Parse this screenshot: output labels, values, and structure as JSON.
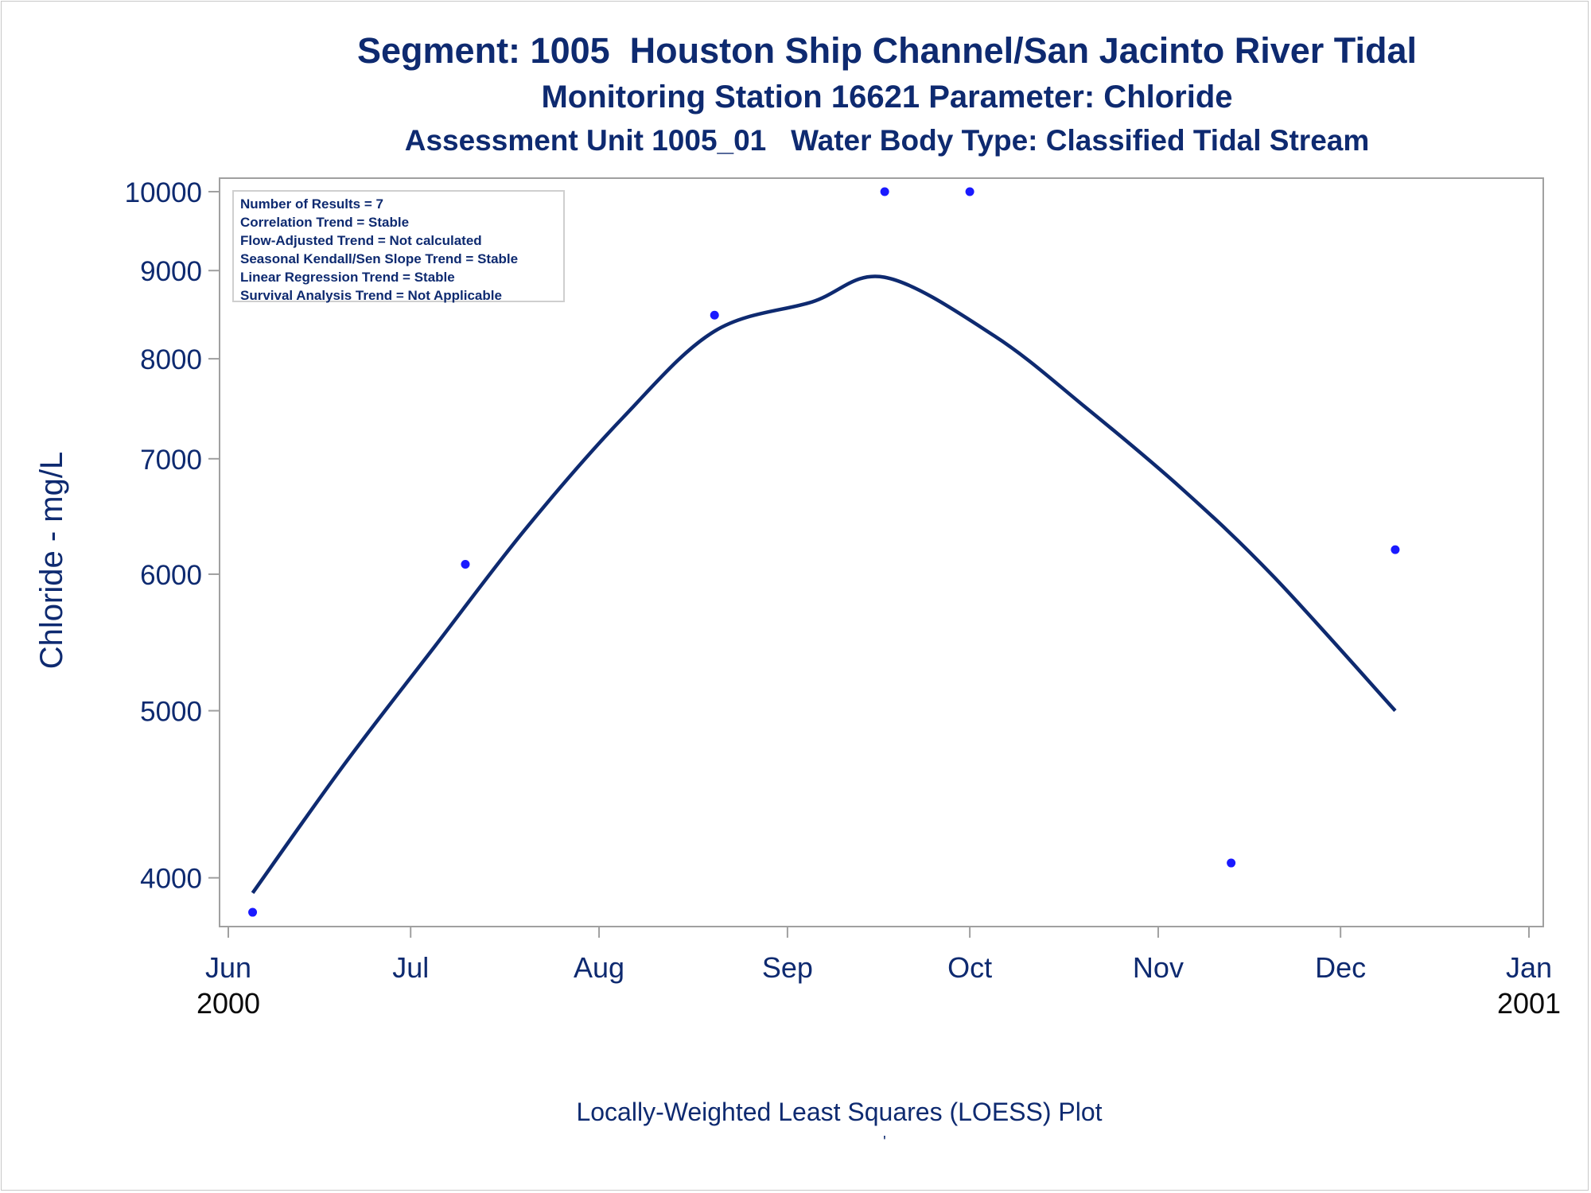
{
  "titles": {
    "line1": "Segment: 1005  Houston Ship Channel/San Jacinto River Tidal",
    "line2": "Monitoring Station 16621 Parameter: Chloride",
    "line3": "Assessment Unit 1005_01   Water Body Type: Classified Tidal Stream"
  },
  "stats": [
    "Number of Results = 7",
    "Correlation Trend = Stable",
    "Flow-Adjusted Trend = Not calculated",
    "Seasonal Kendall/Sen Slope Trend = Stable",
    "Linear Regression Trend = Stable",
    "Survival Analysis Trend = Not Applicable"
  ],
  "footnote": "Locally-Weighted Least Squares (LOESS) Plot",
  "footmark": "'",
  "colors": {
    "text": "#0e2a70",
    "points": "#1a1aff",
    "line": "#0e2a70",
    "axis": "#a0a0a0"
  },
  "chart_data": {
    "type": "scatter",
    "ylabel": "Chloride - mg/L",
    "y_scale": "log",
    "ylim": [
      3800,
      10000
    ],
    "xlim": [
      "2000-06-01",
      "2001-01-01"
    ],
    "y_ticks": [
      4000,
      5000,
      6000,
      7000,
      8000,
      9000,
      10000
    ],
    "x_ticks": [
      {
        "date": "2000-06-01",
        "label": [
          "Jun",
          "2000"
        ]
      },
      {
        "date": "2000-07-01",
        "label": [
          "Jul"
        ]
      },
      {
        "date": "2000-08-01",
        "label": [
          "Aug"
        ]
      },
      {
        "date": "2000-09-01",
        "label": [
          "Sep"
        ]
      },
      {
        "date": "2000-10-01",
        "label": [
          "Oct"
        ]
      },
      {
        "date": "2000-11-01",
        "label": [
          "Nov"
        ]
      },
      {
        "date": "2000-12-01",
        "label": [
          "Dec"
        ]
      },
      {
        "date": "2001-01-01",
        "label": [
          "Jan",
          "2001"
        ]
      }
    ],
    "points": [
      {
        "x": "2000-06-05",
        "y": 3820
      },
      {
        "x": "2000-07-10",
        "y": 6080
      },
      {
        "x": "2000-08-20",
        "y": 8480
      },
      {
        "x": "2000-09-17",
        "y": 10000
      },
      {
        "x": "2000-10-01",
        "y": 10000
      },
      {
        "x": "2000-11-13",
        "y": 4080
      },
      {
        "x": "2000-12-10",
        "y": 6200
      }
    ],
    "loess_line": [
      {
        "x": "2000-06-05",
        "y": 3920
      },
      {
        "x": "2000-06-20",
        "y": 4650
      },
      {
        "x": "2000-07-05",
        "y": 5450
      },
      {
        "x": "2000-07-20",
        "y": 6380
      },
      {
        "x": "2000-08-05",
        "y": 7400
      },
      {
        "x": "2000-08-20",
        "y": 8300
      },
      {
        "x": "2000-09-05",
        "y": 8630
      },
      {
        "x": "2000-09-17",
        "y": 8920
      },
      {
        "x": "2000-10-05",
        "y": 8250
      },
      {
        "x": "2000-10-20",
        "y": 7500
      },
      {
        "x": "2000-11-05",
        "y": 6720
      },
      {
        "x": "2000-11-20",
        "y": 5980
      },
      {
        "x": "2000-12-10",
        "y": 5000
      }
    ]
  }
}
